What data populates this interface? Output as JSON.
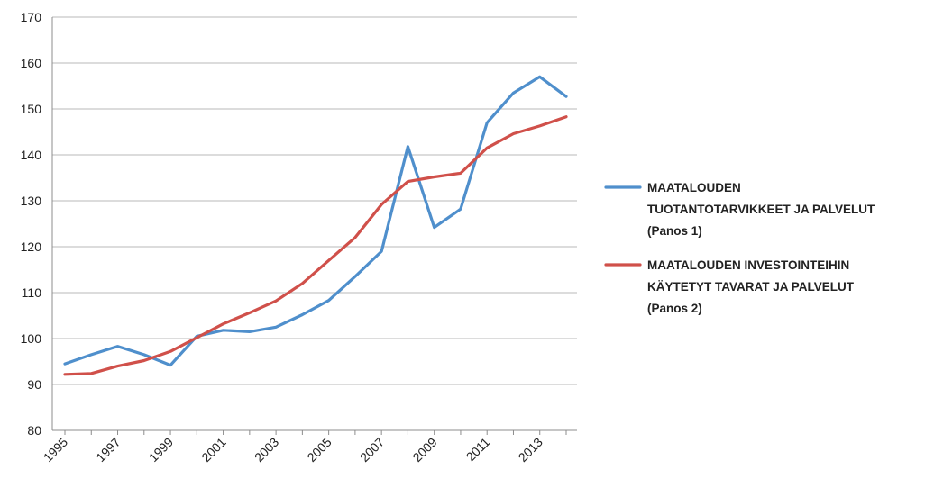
{
  "colors": {
    "series1": "#4f8fcc",
    "series2": "#d0504a",
    "grid": "#b9b9b9"
  },
  "chart_data": {
    "type": "line",
    "title": "",
    "xlabel": "",
    "ylabel": "",
    "ylim": [
      80,
      170
    ],
    "yticks": [
      80,
      90,
      100,
      110,
      120,
      130,
      140,
      150,
      160,
      170
    ],
    "x": [
      1995,
      1996,
      1997,
      1998,
      1999,
      2000,
      2001,
      2002,
      2003,
      2004,
      2005,
      2006,
      2007,
      2008,
      2009,
      2010,
      2011,
      2012,
      2013,
      2014
    ],
    "xtick_labels": [
      "1995",
      "1997",
      "1999",
      "2001",
      "2003",
      "2005",
      "2007",
      "2009",
      "2011",
      "2013"
    ],
    "grid": true,
    "legend_position": "right",
    "series": [
      {
        "name": "MAATALOUDEN TUOTANTOTARVIKKEET JA PALVELUT (Panos 1)",
        "legend_lines": [
          "MAATALOUDEN",
          "TUOTANTOTARVIKKEET JA PALVELUT",
          "(Panos 1)"
        ],
        "color": "#4f8fcc",
        "values": [
          94.5,
          96.5,
          98.3,
          96.5,
          94.2,
          100.5,
          101.8,
          101.5,
          102.5,
          105.2,
          108.3,
          113.5,
          119.0,
          141.8,
          124.2,
          128.2,
          147.0,
          153.5,
          157.0,
          152.7
        ]
      },
      {
        "name": "MAATALOUDEN INVESTOINTEIHIN KÄYTETYT TAVARAT JA PALVELUT (Panos 2)",
        "legend_lines": [
          "MAATALOUDEN INVESTOINTEIHIN",
          "KÄYTETYT TAVARAT JA PALVELUT",
          "(Panos 2)"
        ],
        "color": "#d0504a",
        "values": [
          92.2,
          92.4,
          94.0,
          95.2,
          97.2,
          100.2,
          103.2,
          105.6,
          108.2,
          112.0,
          117.0,
          122.0,
          129.2,
          134.2,
          135.2,
          136.0,
          141.5,
          144.6,
          146.3,
          148.3
        ]
      }
    ]
  }
}
